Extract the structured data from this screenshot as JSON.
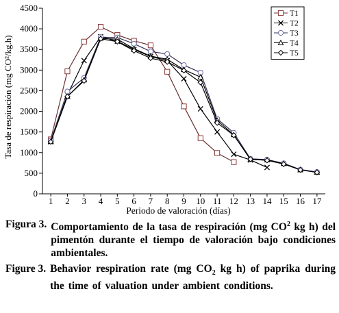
{
  "chart_data": {
    "type": "line",
    "xlabel": "Periodo de valoración (días)",
    "ylabel": "Tasa de respiración (mg CO²/kg.h)",
    "ylim": [
      0,
      4500
    ],
    "yticks": [
      0,
      500,
      1000,
      1500,
      2000,
      2500,
      3000,
      3500,
      4000,
      4500
    ],
    "xticks": [
      1,
      2,
      3,
      4,
      5,
      6,
      7,
      8,
      9,
      10,
      11,
      12,
      13,
      14,
      15,
      16,
      17
    ],
    "legend_position": "top-right",
    "series": [
      {
        "name": "T1",
        "marker": "square",
        "x": [
          1,
          2,
          3,
          4,
          5,
          6,
          7,
          8,
          9,
          10,
          11,
          12
        ],
        "values": [
          1320,
          2970,
          3690,
          4050,
          3850,
          3710,
          3600,
          2960,
          2120,
          1350,
          990,
          770
        ]
      },
      {
        "name": "T2",
        "marker": "x",
        "x": [
          1,
          2,
          3,
          4,
          5,
          6,
          7,
          8,
          9,
          10,
          11,
          12,
          13,
          14
        ],
        "values": [
          1260,
          2400,
          3230,
          3810,
          3700,
          3500,
          3330,
          3230,
          2790,
          2060,
          1500,
          960,
          820,
          640
        ]
      },
      {
        "name": "T3",
        "marker": "circle",
        "x": [
          1,
          2,
          3,
          4,
          5,
          6,
          7,
          8,
          9,
          10,
          11,
          12,
          13,
          14,
          15,
          16,
          17
        ],
        "values": [
          1290,
          2480,
          2810,
          3800,
          3790,
          3640,
          3450,
          3390,
          3120,
          2940,
          1820,
          1480,
          850,
          830,
          740,
          590,
          530
        ]
      },
      {
        "name": "T4",
        "marker": "triangle",
        "x": [
          1,
          2,
          3,
          4,
          5,
          6,
          7,
          8,
          9,
          10,
          11,
          12,
          13,
          14,
          15,
          16,
          17
        ],
        "values": [
          1270,
          2360,
          2760,
          3770,
          3750,
          3520,
          3340,
          3260,
          3010,
          2830,
          1780,
          1430,
          830,
          820,
          730,
          580,
          520
        ]
      },
      {
        "name": "T5",
        "marker": "diamond",
        "x": [
          1,
          2,
          3,
          4,
          5,
          6,
          7,
          8,
          9,
          10,
          11,
          12,
          13,
          14,
          15,
          16,
          17
        ],
        "values": [
          1260,
          2360,
          2740,
          3760,
          3690,
          3470,
          3290,
          3200,
          2990,
          2700,
          1720,
          1420,
          840,
          810,
          720,
          580,
          520
        ]
      }
    ]
  },
  "caption_es": {
    "head": "Figura 3.",
    "body_a": "Comportamiento de la tasa de respiración (mg CO",
    "sup": "2",
    "body_b": "kg h) del pimentón durante el tiempo de valoración bajo condiciones ambientales."
  },
  "caption_en": {
    "head": "Figure 3.",
    "body_a": "Behavior respiration rate (mg CO",
    "sub": "2",
    "body_b": "kg h) of paprika during the time of valuation under ambient conditions."
  }
}
